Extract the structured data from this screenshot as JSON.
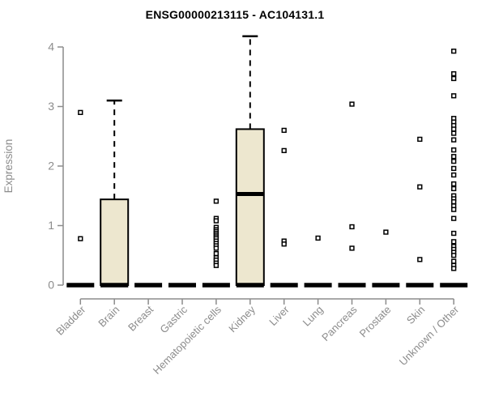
{
  "chart_data": {
    "type": "boxplot",
    "title": "ENSG00000213115 - AC104131.1",
    "ylabel": "Expression",
    "xlabel": "",
    "ylim": [
      0,
      4.2
    ],
    "yticks": [
      0,
      1,
      2,
      3,
      4
    ],
    "grid": false,
    "legend_position": "none",
    "colors": {
      "box_fill": "#EDE7CF",
      "box_stroke": "#000000",
      "median": "#000000",
      "whisker": "#000000",
      "outlier_stroke": "#000000",
      "outlier_fill": "#FFFFFF",
      "axis": "#8C8C8C",
      "tick_label": "#8C8C8C",
      "title": "#000000",
      "background": "#FFFFFF"
    },
    "categories": [
      {
        "label": "Bladder",
        "q1": 0,
        "median": 0,
        "q3": 0,
        "whisker_low": 0,
        "whisker_high": 0,
        "outliers": [
          2.9,
          0.78
        ]
      },
      {
        "label": "Brain",
        "q1": 0,
        "median": 0,
        "q3": 1.44,
        "whisker_low": 0,
        "whisker_high": 3.1,
        "outliers": []
      },
      {
        "label": "Breast",
        "q1": 0,
        "median": 0,
        "q3": 0,
        "whisker_low": 0,
        "whisker_high": 0,
        "outliers": []
      },
      {
        "label": "Gastric",
        "q1": 0,
        "median": 0,
        "q3": 0,
        "whisker_low": 0,
        "whisker_high": 0,
        "outliers": []
      },
      {
        "label": "Hematopoietic cells",
        "q1": 0,
        "median": 0,
        "q3": 0,
        "whisker_low": 0,
        "whisker_high": 0,
        "outliers": [
          1.41,
          1.12,
          1.08,
          0.97,
          0.93,
          0.9,
          0.87,
          0.84,
          0.81,
          0.78,
          0.74,
          0.7,
          0.66,
          0.62,
          0.53,
          0.46,
          0.42,
          0.37,
          0.33
        ]
      },
      {
        "label": "Kidney",
        "q1": 0,
        "median": 1.53,
        "q3": 2.62,
        "whisker_low": 0,
        "whisker_high": 4.18,
        "outliers": []
      },
      {
        "label": "Liver",
        "q1": 0,
        "median": 0,
        "q3": 0,
        "whisker_low": 0,
        "whisker_high": 0,
        "outliers": [
          2.6,
          2.26,
          0.74,
          0.69
        ]
      },
      {
        "label": "Lung",
        "q1": 0,
        "median": 0,
        "q3": 0,
        "whisker_low": 0,
        "whisker_high": 0,
        "outliers": [
          0.79
        ]
      },
      {
        "label": "Pancreas",
        "q1": 0,
        "median": 0,
        "q3": 0,
        "whisker_low": 0,
        "whisker_high": 0,
        "outliers": [
          3.04,
          0.98,
          0.62
        ]
      },
      {
        "label": "Prostate",
        "q1": 0,
        "median": 0,
        "q3": 0,
        "whisker_low": 0,
        "whisker_high": 0,
        "outliers": [
          0.89
        ]
      },
      {
        "label": "Skin",
        "q1": 0,
        "median": 0,
        "q3": 0,
        "whisker_low": 0,
        "whisker_high": 0,
        "outliers": [
          2.45,
          1.65,
          0.43
        ]
      },
      {
        "label": "Unknown / Other",
        "q1": 0,
        "median": 0,
        "q3": 0,
        "whisker_low": 0,
        "whisker_high": 0,
        "outliers": [
          3.93,
          3.55,
          3.47,
          3.18,
          2.8,
          2.74,
          2.68,
          2.62,
          2.55,
          2.44,
          2.27,
          2.16,
          2.08,
          1.96,
          1.85,
          1.7,
          1.62,
          1.5,
          1.45,
          1.4,
          1.33,
          1.27,
          1.12,
          0.87,
          0.73,
          0.65,
          0.6,
          0.55,
          0.5,
          0.4,
          0.33,
          0.28
        ]
      }
    ]
  }
}
